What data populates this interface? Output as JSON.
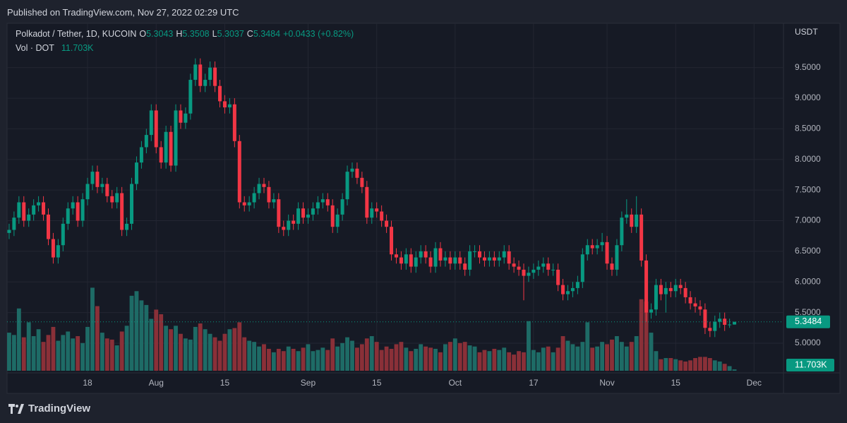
{
  "header": {
    "published": "Published on TradingView.com, Nov 27, 2022 02:29 UTC",
    "brand": "TradingView"
  },
  "chart_data": {
    "type": "candlestick",
    "symbol": "Polkadot / Tether, 1D, KUCOIN",
    "open_label": "O",
    "high_label": "H",
    "low_label": "L",
    "close_label": "C",
    "change_label": "+0.0433 (+0.82%)",
    "volume_title": "Vol · DOT",
    "last_volume_label": "11.703K",
    "currency": "USDT",
    "up_color": "#089981",
    "down_color": "#f23645",
    "volume_up_color": "#1e6b66",
    "volume_down_color": "#8a3038",
    "xlim": [
      "2022-07-01",
      "2022-12-07"
    ],
    "ylim": [
      4.55,
      10.2
    ],
    "volume_lim": [
      0,
      3000
    ],
    "grid": true,
    "yticks": [
      {
        "value": 5,
        "label": "5.0000"
      },
      {
        "value": 5.5,
        "label": "5.5000"
      },
      {
        "value": 6,
        "label": "6.0000"
      },
      {
        "value": 6.5,
        "label": "6.5000"
      },
      {
        "value": 7,
        "label": "7.0000"
      },
      {
        "value": 7.5,
        "label": "7.5000"
      },
      {
        "value": 8,
        "label": "8.0000"
      },
      {
        "value": 8.5,
        "label": "8.5000"
      },
      {
        "value": 9,
        "label": "9.0000"
      },
      {
        "value": 9.5,
        "label": "9.5000"
      }
    ],
    "xticks": [
      {
        "value": "2022-07-18",
        "label": "18"
      },
      {
        "value": "2022-08-01",
        "label": "Aug"
      },
      {
        "value": "2022-08-15",
        "label": "15"
      },
      {
        "value": "2022-09-01",
        "label": "Sep"
      },
      {
        "value": "2022-09-15",
        "label": "15"
      },
      {
        "value": "2022-10-01",
        "label": "Oct"
      },
      {
        "value": "2022-10-17",
        "label": "17"
      },
      {
        "value": "2022-11-01",
        "label": "Nov"
      },
      {
        "value": "2022-11-15",
        "label": "15"
      },
      {
        "value": "2022-12-01",
        "label": "Dec"
      }
    ],
    "x": [
      "2022-07-02",
      "2022-07-03",
      "2022-07-04",
      "2022-07-05",
      "2022-07-06",
      "2022-07-07",
      "2022-07-08",
      "2022-07-09",
      "2022-07-10",
      "2022-07-11",
      "2022-07-12",
      "2022-07-13",
      "2022-07-14",
      "2022-07-15",
      "2022-07-16",
      "2022-07-17",
      "2022-07-18",
      "2022-07-19",
      "2022-07-20",
      "2022-07-21",
      "2022-07-22",
      "2022-07-23",
      "2022-07-24",
      "2022-07-25",
      "2022-07-26",
      "2022-07-27",
      "2022-07-28",
      "2022-07-29",
      "2022-07-30",
      "2022-07-31",
      "2022-08-01",
      "2022-08-02",
      "2022-08-03",
      "2022-08-04",
      "2022-08-05",
      "2022-08-06",
      "2022-08-07",
      "2022-08-08",
      "2022-08-09",
      "2022-08-10",
      "2022-08-11",
      "2022-08-12",
      "2022-08-13",
      "2022-08-14",
      "2022-08-15",
      "2022-08-16",
      "2022-08-17",
      "2022-08-18",
      "2022-08-19",
      "2022-08-20",
      "2022-08-21",
      "2022-08-22",
      "2022-08-23",
      "2022-08-24",
      "2022-08-25",
      "2022-08-26",
      "2022-08-27",
      "2022-08-28",
      "2022-08-29",
      "2022-08-30",
      "2022-08-31",
      "2022-09-01",
      "2022-09-02",
      "2022-09-03",
      "2022-09-04",
      "2022-09-05",
      "2022-09-06",
      "2022-09-07",
      "2022-09-08",
      "2022-09-09",
      "2022-09-10",
      "2022-09-11",
      "2022-09-12",
      "2022-09-13",
      "2022-09-14",
      "2022-09-15",
      "2022-09-16",
      "2022-09-17",
      "2022-09-18",
      "2022-09-19",
      "2022-09-20",
      "2022-09-21",
      "2022-09-22",
      "2022-09-23",
      "2022-09-24",
      "2022-09-25",
      "2022-09-26",
      "2022-09-27",
      "2022-09-28",
      "2022-09-29",
      "2022-09-30",
      "2022-10-01",
      "2022-10-02",
      "2022-10-03",
      "2022-10-04",
      "2022-10-05",
      "2022-10-06",
      "2022-10-07",
      "2022-10-08",
      "2022-10-09",
      "2022-10-10",
      "2022-10-11",
      "2022-10-12",
      "2022-10-13",
      "2022-10-14",
      "2022-10-15",
      "2022-10-16",
      "2022-10-17",
      "2022-10-18",
      "2022-10-19",
      "2022-10-20",
      "2022-10-21",
      "2022-10-22",
      "2022-10-23",
      "2022-10-24",
      "2022-10-25",
      "2022-10-26",
      "2022-10-27",
      "2022-10-28",
      "2022-10-29",
      "2022-10-30",
      "2022-10-31",
      "2022-11-01",
      "2022-11-02",
      "2022-11-03",
      "2022-11-04",
      "2022-11-05",
      "2022-11-06",
      "2022-11-07",
      "2022-11-08",
      "2022-11-09",
      "2022-11-10",
      "2022-11-11",
      "2022-11-12",
      "2022-11-13",
      "2022-11-14",
      "2022-11-15",
      "2022-11-16",
      "2022-11-17",
      "2022-11-18",
      "2022-11-19",
      "2022-11-20",
      "2022-11-21",
      "2022-11-22",
      "2022-11-23",
      "2022-11-24",
      "2022-11-25",
      "2022-11-26",
      "2022-11-27"
    ],
    "open": [
      6.8,
      6.85,
      7.05,
      7.3,
      7.0,
      7.1,
      7.25,
      7.3,
      7.1,
      6.7,
      6.4,
      6.6,
      6.95,
      7.2,
      7.3,
      7.0,
      7.35,
      7.6,
      7.8,
      7.55,
      7.6,
      7.4,
      7.3,
      7.45,
      6.85,
      6.95,
      7.6,
      7.95,
      8.2,
      8.4,
      8.8,
      8.2,
      7.95,
      8.45,
      7.9,
      8.8,
      8.6,
      8.75,
      9.3,
      9.55,
      9.2,
      9.3,
      9.5,
      9.2,
      8.95,
      8.85,
      8.9,
      8.3,
      7.3,
      7.25,
      7.3,
      7.45,
      7.6,
      7.55,
      7.3,
      7.35,
      6.9,
      6.85,
      7.0,
      6.95,
      7.2,
      7.05,
      7.1,
      7.2,
      7.3,
      7.35,
      7.25,
      6.9,
      7.1,
      7.35,
      7.8,
      7.85,
      7.7,
      7.55,
      7.05,
      7.2,
      7.15,
      7.0,
      6.9,
      6.45,
      6.4,
      6.3,
      6.45,
      6.25,
      6.4,
      6.5,
      6.4,
      6.25,
      6.55,
      6.35,
      6.4,
      6.3,
      6.4,
      6.3,
      6.2,
      6.5,
      6.5,
      6.4,
      6.35,
      6.4,
      6.35,
      6.4,
      6.5,
      6.3,
      6.25,
      6.2,
      6.1,
      6.15,
      6.2,
      6.25,
      6.3,
      6.2,
      6.2,
      5.95,
      5.8,
      5.85,
      5.9,
      6.0,
      6.45,
      6.6,
      6.55,
      6.6,
      6.65,
      6.3,
      6.2,
      6.6,
      7.05,
      7.1,
      6.9,
      7.1,
      6.35,
      5.5,
      5.55,
      5.95,
      5.8,
      5.9,
      5.85,
      5.95,
      5.9,
      5.75,
      5.65,
      5.6,
      5.55,
      5.25,
      5.2,
      5.35,
      5.4,
      5.3,
      5.3043
    ],
    "high": [
      6.95,
      7.15,
      7.4,
      7.4,
      7.2,
      7.35,
      7.4,
      7.4,
      7.2,
      6.8,
      6.7,
      7.05,
      7.3,
      7.4,
      7.4,
      7.45,
      7.7,
      7.9,
      7.9,
      7.7,
      7.7,
      7.5,
      7.55,
      7.55,
      7.05,
      7.7,
      8.05,
      8.3,
      8.5,
      8.9,
      8.9,
      8.3,
      8.55,
      8.55,
      8.9,
      8.9,
      8.85,
      9.4,
      9.65,
      9.65,
      9.4,
      9.6,
      9.6,
      9.3,
      9.05,
      9.0,
      9.0,
      8.4,
      7.4,
      7.4,
      7.55,
      7.7,
      7.7,
      7.65,
      7.45,
      7.45,
      7.0,
      7.1,
      7.1,
      7.3,
      7.3,
      7.2,
      7.3,
      7.4,
      7.45,
      7.45,
      7.35,
      7.2,
      7.45,
      7.9,
      7.95,
      7.95,
      7.8,
      7.65,
      7.3,
      7.3,
      7.25,
      7.1,
      7.0,
      6.55,
      6.5,
      6.55,
      6.55,
      6.5,
      6.6,
      6.6,
      6.5,
      6.65,
      6.65,
      6.5,
      6.5,
      6.5,
      6.5,
      6.4,
      6.6,
      6.6,
      6.6,
      6.5,
      6.5,
      6.5,
      6.5,
      6.6,
      6.6,
      6.4,
      6.35,
      6.3,
      6.25,
      6.3,
      6.35,
      6.4,
      6.4,
      6.3,
      6.3,
      6.05,
      5.95,
      6.0,
      6.1,
      6.55,
      6.7,
      6.7,
      6.7,
      6.8,
      6.75,
      6.4,
      6.7,
      7.15,
      7.35,
      7.2,
      7.4,
      7.2,
      6.45,
      5.65,
      6.05,
      6.05,
      6.0,
      6.0,
      6.05,
      6.05,
      6.0,
      5.85,
      5.75,
      5.7,
      5.65,
      5.35,
      5.45,
      5.5,
      5.5,
      5.4,
      5.3508
    ],
    "low": [
      6.7,
      6.75,
      6.95,
      6.9,
      6.9,
      7.0,
      7.15,
      7.0,
      6.6,
      6.3,
      6.3,
      6.5,
      6.85,
      7.1,
      6.9,
      6.9,
      7.25,
      7.5,
      7.45,
      7.45,
      7.3,
      7.2,
      7.2,
      6.75,
      6.75,
      6.85,
      7.5,
      7.85,
      8.1,
      8.3,
      8.1,
      7.85,
      7.85,
      7.8,
      7.8,
      8.5,
      8.5,
      8.65,
      9.2,
      9.1,
      9.1,
      9.2,
      9.1,
      8.85,
      8.75,
      8.75,
      8.2,
      7.2,
      7.15,
      7.15,
      7.2,
      7.35,
      7.45,
      7.2,
      7.2,
      6.8,
      6.75,
      6.75,
      6.85,
      6.85,
      6.95,
      6.95,
      7.0,
      7.1,
      7.2,
      7.15,
      6.8,
      6.8,
      7.0,
      7.25,
      7.7,
      7.6,
      7.45,
      6.95,
      6.95,
      7.05,
      6.9,
      6.8,
      6.35,
      6.3,
      6.2,
      6.2,
      6.15,
      6.15,
      6.3,
      6.3,
      6.15,
      6.15,
      6.25,
      6.25,
      6.2,
      6.2,
      6.2,
      6.1,
      6.1,
      6.4,
      6.3,
      6.25,
      6.25,
      6.25,
      6.25,
      6.3,
      6.2,
      6.15,
      6.1,
      5.7,
      6.0,
      6.05,
      6.1,
      6.15,
      6.1,
      6.1,
      5.85,
      5.7,
      5.7,
      5.75,
      5.8,
      5.9,
      6.35,
      6.45,
      6.45,
      6.5,
      6.2,
      6.1,
      6.1,
      6.5,
      6.95,
      6.8,
      6.8,
      6.25,
      5.35,
      5.4,
      5.45,
      5.7,
      5.5,
      5.75,
      5.75,
      5.8,
      5.65,
      5.55,
      5.5,
      5.45,
      5.15,
      5.1,
      5.1,
      5.25,
      5.2,
      5.25,
      5.3037
    ],
    "close": [
      6.85,
      7.05,
      7.3,
      7.0,
      7.1,
      7.25,
      7.3,
      7.1,
      6.7,
      6.4,
      6.6,
      6.95,
      7.2,
      7.3,
      7.0,
      7.35,
      7.6,
      7.8,
      7.55,
      7.6,
      7.4,
      7.3,
      7.45,
      6.85,
      6.95,
      7.6,
      7.95,
      8.2,
      8.4,
      8.8,
      8.2,
      7.95,
      8.45,
      7.9,
      8.8,
      8.6,
      8.75,
      9.3,
      9.55,
      9.2,
      9.3,
      9.5,
      9.2,
      8.95,
      8.85,
      8.9,
      8.3,
      7.3,
      7.25,
      7.3,
      7.45,
      7.6,
      7.55,
      7.3,
      7.35,
      6.9,
      6.85,
      7.0,
      6.95,
      7.2,
      7.05,
      7.1,
      7.2,
      7.3,
      7.35,
      7.25,
      6.9,
      7.1,
      7.35,
      7.8,
      7.85,
      7.7,
      7.55,
      7.05,
      7.2,
      7.15,
      7.0,
      6.9,
      6.45,
      6.4,
      6.3,
      6.45,
      6.25,
      6.4,
      6.5,
      6.4,
      6.25,
      6.55,
      6.35,
      6.4,
      6.3,
      6.4,
      6.3,
      6.2,
      6.5,
      6.5,
      6.4,
      6.35,
      6.4,
      6.35,
      6.4,
      6.5,
      6.3,
      6.25,
      6.2,
      6.1,
      6.15,
      6.2,
      6.25,
      6.3,
      6.2,
      6.2,
      5.95,
      5.8,
      5.85,
      5.9,
      6.0,
      6.45,
      6.6,
      6.55,
      6.6,
      6.65,
      6.3,
      6.2,
      6.6,
      7.05,
      7.1,
      6.9,
      7.1,
      6.35,
      5.5,
      5.55,
      5.95,
      5.8,
      5.9,
      5.85,
      5.95,
      5.9,
      5.75,
      5.65,
      5.6,
      5.55,
      5.25,
      5.2,
      5.35,
      5.4,
      5.3,
      5.3051,
      5.3484
    ],
    "volume": [
      330,
      310,
      540,
      290,
      420,
      300,
      360,
      250,
      310,
      380,
      260,
      310,
      340,
      280,
      300,
      240,
      380,
      720,
      560,
      330,
      280,
      270,
      220,
      340,
      390,
      650,
      690,
      610,
      570,
      450,
      530,
      490,
      390,
      360,
      390,
      320,
      280,
      270,
      380,
      410,
      360,
      320,
      290,
      260,
      320,
      360,
      370,
      420,
      290,
      260,
      250,
      210,
      230,
      190,
      160,
      190,
      170,
      210,
      190,
      170,
      200,
      230,
      170,
      180,
      200,
      180,
      280,
      210,
      240,
      290,
      260,
      200,
      230,
      280,
      300,
      250,
      180,
      210,
      190,
      230,
      250,
      200,
      170,
      190,
      230,
      210,
      200,
      190,
      160,
      230,
      250,
      280,
      240,
      250,
      220,
      210,
      160,
      180,
      170,
      190,
      180,
      200,
      160,
      140,
      170,
      160,
      430,
      180,
      160,
      200,
      210,
      160,
      200,
      300,
      260,
      230,
      210,
      250,
      420,
      200,
      210,
      250,
      230,
      270,
      300,
      250,
      210,
      250,
      300,
      620,
      600,
      330,
      170,
      100,
      110,
      110,
      100,
      90,
      80,
      90,
      110,
      120,
      120,
      110,
      90,
      80,
      60,
      40,
      11.703
    ]
  }
}
